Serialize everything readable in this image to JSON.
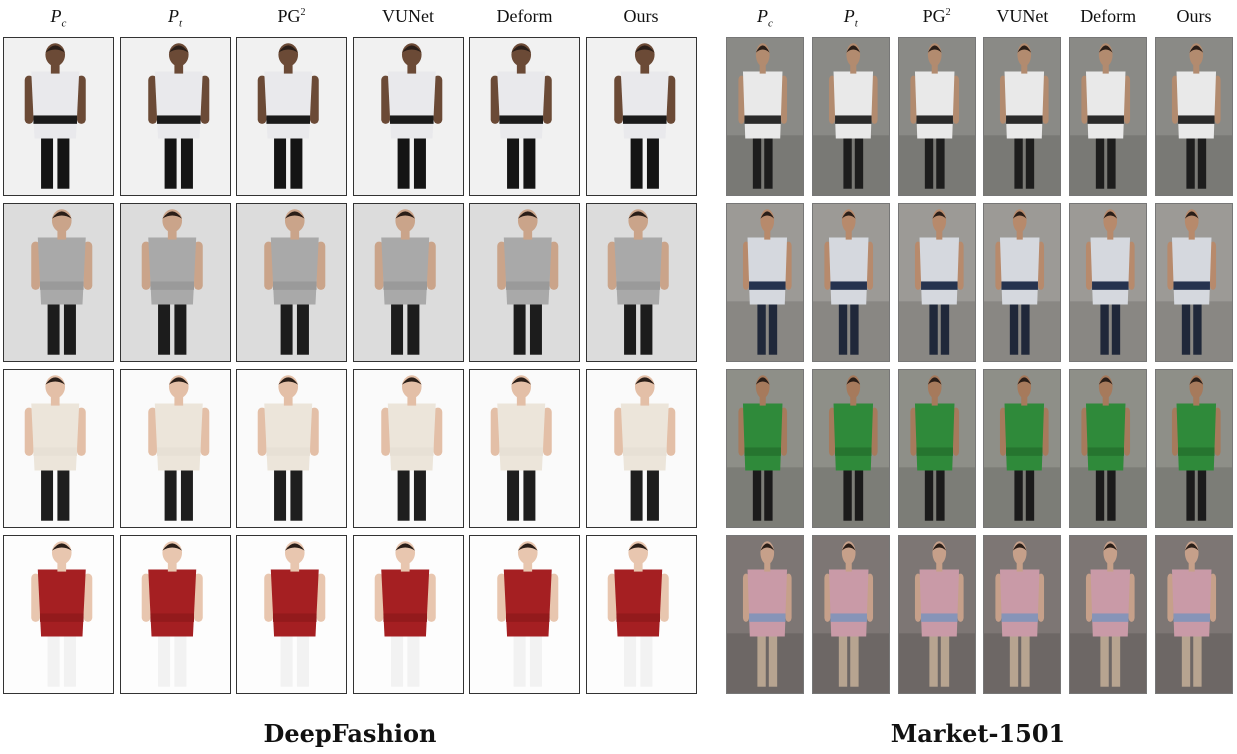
{
  "deepfashion": {
    "caption": "DeepFashion",
    "columns": [
      {
        "base": "P",
        "sub": "c",
        "sup": ""
      },
      {
        "base": "P",
        "sub": "t",
        "sup": ""
      },
      {
        "base": "PG",
        "sub": "",
        "sup": "2"
      },
      {
        "base": "VUNet",
        "sub": "",
        "sup": ""
      },
      {
        "base": "Deform",
        "sub": "",
        "sup": ""
      },
      {
        "base": "Ours",
        "sub": "",
        "sup": ""
      }
    ],
    "rows": [
      {
        "bg": "#f1f1f1",
        "top": "#e9e9ec",
        "band": "#1a1a1a",
        "bottom": "#141414",
        "skin": "#6b4a36"
      },
      {
        "bg": "#dcdcdc",
        "top": "#a9a9a9",
        "band": "#9a9a9a",
        "bottom": "#1c1c1c",
        "skin": "#caa48a"
      },
      {
        "bg": "#fafafa",
        "top": "#ece5da",
        "band": "#e7e0d5",
        "bottom": "#1e1e1e",
        "skin": "#e3bfa7"
      },
      {
        "bg": "#fdfdfd",
        "top": "#a51f22",
        "band": "#931a1c",
        "bottom": "#f2f2f2",
        "skin": "#e8c6af"
      }
    ]
  },
  "market": {
    "caption": "Market-1501",
    "columns": [
      {
        "base": "P",
        "sub": "c",
        "sup": ""
      },
      {
        "base": "P",
        "sub": "t",
        "sup": ""
      },
      {
        "base": "PG",
        "sub": "",
        "sup": "2"
      },
      {
        "base": "VUNet",
        "sub": "",
        "sup": ""
      },
      {
        "base": "Deform",
        "sub": "",
        "sup": ""
      },
      {
        "base": "Ours",
        "sub": "",
        "sup": ""
      }
    ],
    "rows": [
      {
        "bg": "#8a8a86",
        "top": "#e9e9e9",
        "band": "#2a2a2a",
        "bottom": "#1d1d1d",
        "skin": "#b28b6f"
      },
      {
        "bg": "#9c9a96",
        "top": "#d5d8de",
        "band": "#26334f",
        "bottom": "#20283a",
        "skin": "#b78a6c"
      },
      {
        "bg": "#8e8f88",
        "top": "#2f8a3a",
        "band": "#26752f",
        "bottom": "#1b1b1b",
        "skin": "#a67a5c"
      },
      {
        "bg": "#7d7674",
        "top": "#c99aa7",
        "band": "#8794b8",
        "bottom": "#b7a490",
        "skin": "#c6a08a"
      }
    ]
  }
}
